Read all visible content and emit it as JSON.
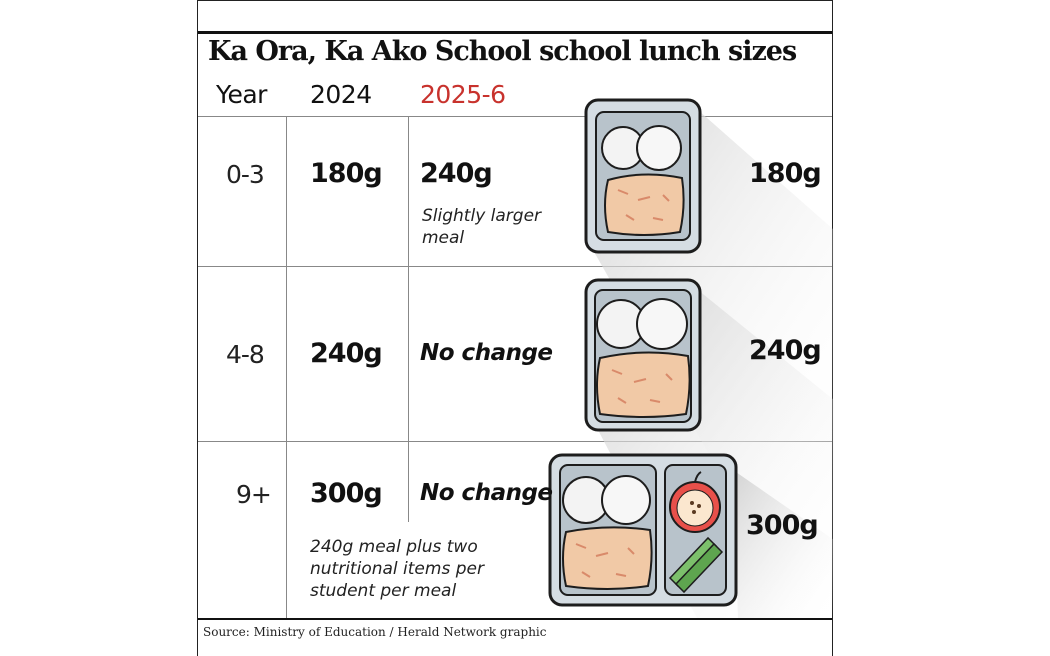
{
  "title": "Ka Ora, Ka Ako School school lunch sizes",
  "headers": {
    "year": "Year",
    "y2024": "2024",
    "y2025": "2025-6"
  },
  "colors": {
    "accent": "#c8322d",
    "tray": "#d5dde3",
    "tray_edge": "#1d1d1d",
    "food": "#f1c9a6"
  },
  "rows": [
    {
      "year": "0-3",
      "v2024": "180g",
      "v2025": "240g",
      "note": "Slightly larger meal",
      "tray_label": "180g",
      "tray_icon": "small-lunch-tray-icon"
    },
    {
      "year": "4-8",
      "v2024": "240g",
      "v2025": "No change",
      "note": "",
      "tray_label": "240g",
      "tray_icon": "medium-lunch-tray-icon"
    },
    {
      "year": "9+",
      "v2024": "300g",
      "v2025": "No change",
      "note": "240g meal plus two nutritional items per student per meal",
      "tray_label": "300g",
      "tray_icon": "large-lunch-tray-with-apple-and-celery-icon"
    }
  ],
  "footer": "Source: Ministry of Education / Herald Network graphic"
}
